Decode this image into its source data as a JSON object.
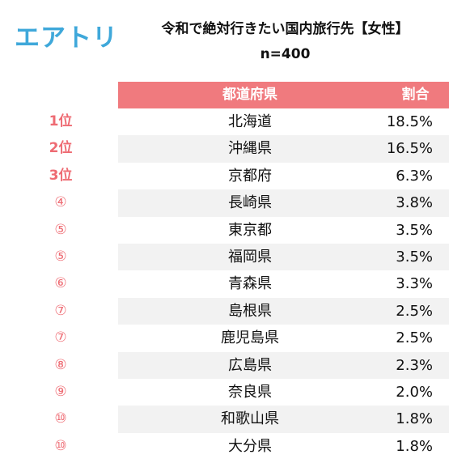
{
  "logo": "エアトリ",
  "title": "令和で絶対行きたい国内旅行先【女性】",
  "sample": "n=400",
  "headers": {
    "prefecture": "都道府県",
    "ratio": "割合"
  },
  "colors": {
    "header_bg": "#f07a7e",
    "rank_color": "#ee6b73",
    "logo_color": "#3fa8da",
    "stripe": "#f2f2f2"
  },
  "rows": [
    {
      "rank": "1位",
      "prefecture": "北海道",
      "ratio": "18.5%"
    },
    {
      "rank": "2位",
      "prefecture": "沖縄県",
      "ratio": "16.5%"
    },
    {
      "rank": "3位",
      "prefecture": "京都府",
      "ratio": "6.3%"
    },
    {
      "rank": "④",
      "prefecture": "長崎県",
      "ratio": "3.8%"
    },
    {
      "rank": "⑤",
      "prefecture": "東京都",
      "ratio": "3.5%"
    },
    {
      "rank": "⑤",
      "prefecture": "福岡県",
      "ratio": "3.5%"
    },
    {
      "rank": "⑥",
      "prefecture": "青森県",
      "ratio": "3.3%"
    },
    {
      "rank": "⑦",
      "prefecture": "島根県",
      "ratio": "2.5%"
    },
    {
      "rank": "⑦",
      "prefecture": "鹿児島県",
      "ratio": "2.5%"
    },
    {
      "rank": "⑧",
      "prefecture": "広島県",
      "ratio": "2.3%"
    },
    {
      "rank": "⑨",
      "prefecture": "奈良県",
      "ratio": "2.0%"
    },
    {
      "rank": "⑩",
      "prefecture": "和歌山県",
      "ratio": "1.8%"
    },
    {
      "rank": "⑩",
      "prefecture": "大分県",
      "ratio": "1.8%"
    }
  ]
}
